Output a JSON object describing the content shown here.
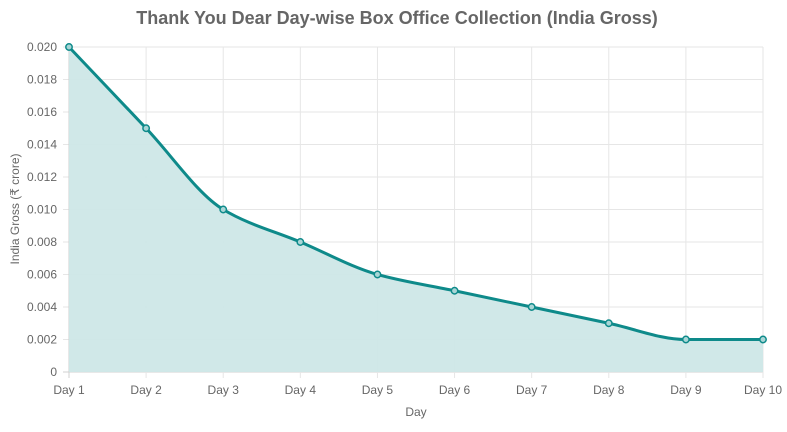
{
  "chart_data": {
    "type": "area",
    "title": "Thank You Dear Day-wise Box Office Collection (India Gross)",
    "xlabel": "Day",
    "ylabel": "India Gross (₹ crore)",
    "categories": [
      "Day 1",
      "Day 2",
      "Day 3",
      "Day 4",
      "Day 5",
      "Day 6",
      "Day 7",
      "Day 8",
      "Day 9",
      "Day 10"
    ],
    "series": [
      {
        "values": [
          0.02,
          0.015,
          0.01,
          0.008,
          0.006,
          0.005,
          0.004,
          0.003,
          0.002,
          0.002
        ]
      }
    ],
    "ylim": [
      0,
      0.02
    ],
    "yticks": [
      "0",
      "0.002",
      "0.004",
      "0.006",
      "0.008",
      "0.010",
      "0.012",
      "0.014",
      "0.016",
      "0.018",
      "0.020"
    ],
    "grid": true,
    "legend": "none",
    "colors": {
      "line": "#0e8a8a",
      "fill": "#cde7e7",
      "point": "#0e8a8a"
    }
  }
}
